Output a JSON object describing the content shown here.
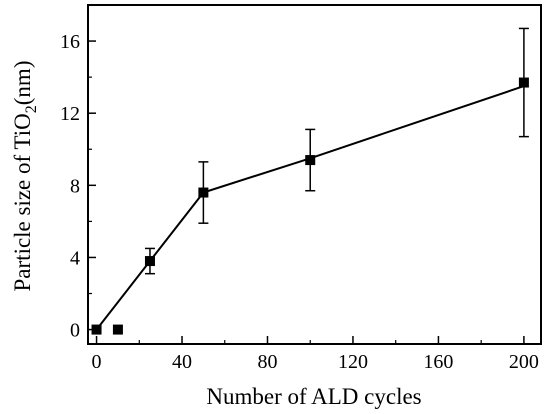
{
  "chart_data": {
    "type": "scatter",
    "title": "",
    "xlabel": "Number of ALD cycles",
    "ylabel": {
      "prefix": "Particle size of TiO",
      "subscript": "2",
      "suffix": "(nm)"
    },
    "xlim": [
      -4,
      208
    ],
    "ylim": [
      -0.8,
      18
    ],
    "xticks": [
      0,
      40,
      80,
      120,
      160,
      200
    ],
    "yticks": [
      0,
      4,
      8,
      12,
      16
    ],
    "grid": false,
    "legend": "none",
    "colors": {
      "marker": "#000000",
      "line": "#000000"
    },
    "series": [
      {
        "points": [
          {
            "x": 0,
            "y": 0,
            "err": 0
          },
          {
            "x": 10,
            "y": 0,
            "err": 0
          },
          {
            "x": 25,
            "y": 3.8,
            "err": 0.7
          },
          {
            "x": 50,
            "y": 7.6,
            "err": 1.7
          },
          {
            "x": 100,
            "y": 9.4,
            "err": 1.7
          },
          {
            "x": 200,
            "y": 13.7,
            "err": 3.0
          }
        ],
        "fit_line": [
          {
            "x": 0,
            "y": 0
          },
          {
            "x": 50,
            "y": 7.6
          },
          {
            "x": 100,
            "y": 9.5
          },
          {
            "x": 200,
            "y": 13.5
          }
        ]
      }
    ]
  }
}
